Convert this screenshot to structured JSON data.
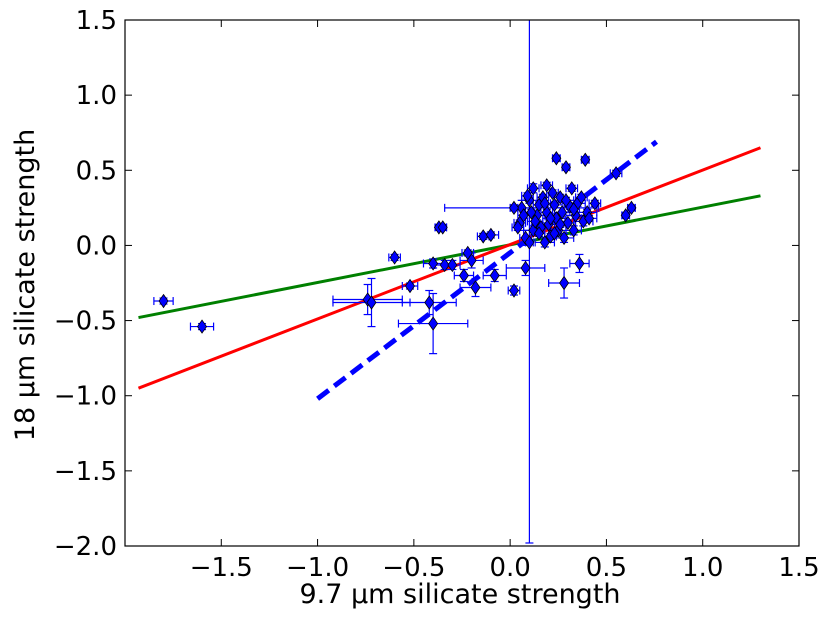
{
  "chart_data": {
    "type": "scatter",
    "title": "",
    "xlabel": "9.7 μm silicate strength",
    "ylabel": "18 μm silicate strength",
    "xlim": [
      -2.0,
      1.5
    ],
    "ylim": [
      -2.0,
      1.5
    ],
    "xticks": [
      -1.5,
      -1.0,
      -0.5,
      0.0,
      0.5,
      1.0,
      1.5
    ],
    "xtick_labels": [
      "−1.5",
      "−1.0",
      "−0.5",
      "0.0",
      "0.5",
      "1.0",
      "1.5"
    ],
    "yticks": [
      -2.0,
      -1.5,
      -1.0,
      -0.5,
      0.0,
      0.5,
      1.0,
      1.5
    ],
    "ytick_labels": [
      "−2.0",
      "−1.5",
      "−1.0",
      "−0.5",
      "0.0",
      "0.5",
      "1.0",
      "1.5"
    ],
    "grid": false,
    "lines": [
      {
        "name": "green-fit",
        "color": "#008000",
        "style": "solid",
        "x": [
          -1.93,
          1.3
        ],
        "y": [
          -0.48,
          0.33
        ]
      },
      {
        "name": "red-fit",
        "color": "#ff0000",
        "style": "solid",
        "x": [
          -1.93,
          1.3
        ],
        "y": [
          -0.95,
          0.65
        ]
      },
      {
        "name": "blue-fit",
        "color": "#0000ff",
        "style": "dashed",
        "x": [
          -1.0,
          0.76
        ],
        "y": [
          -1.02,
          0.69
        ]
      }
    ],
    "series": [
      {
        "name": "sources",
        "marker": "diamond",
        "color": "#0000ff",
        "points": [
          {
            "x": -1.8,
            "y": -0.37,
            "xerr": 0.05,
            "yerr": 0.02
          },
          {
            "x": -1.6,
            "y": -0.54,
            "xerr": 0.06,
            "yerr": 0.02
          },
          {
            "x": -0.74,
            "y": -0.36,
            "xerr": 0.18,
            "yerr": 0.1
          },
          {
            "x": -0.72,
            "y": -0.38,
            "xerr": 0.2,
            "yerr": 0.16
          },
          {
            "x": -0.6,
            "y": -0.08,
            "xerr": 0.03,
            "yerr": 0.02
          },
          {
            "x": -0.52,
            "y": -0.27,
            "xerr": 0.04,
            "yerr": 0.02
          },
          {
            "x": -0.42,
            "y": -0.38,
            "xerr": 0.14,
            "yerr": 0.08
          },
          {
            "x": -0.4,
            "y": -0.52,
            "xerr": 0.18,
            "yerr": 0.2
          },
          {
            "x": -0.4,
            "y": -0.12,
            "xerr": 0.05,
            "yerr": 0.03
          },
          {
            "x": -0.37,
            "y": 0.12,
            "xerr": 0.02,
            "yerr": 0.02
          },
          {
            "x": -0.35,
            "y": 0.12,
            "xerr": 0.02,
            "yerr": 0.02
          },
          {
            "x": -0.34,
            "y": -0.13,
            "xerr": 0.05,
            "yerr": 0.03
          },
          {
            "x": -0.3,
            "y": -0.13,
            "xerr": 0.04,
            "yerr": 0.03
          },
          {
            "x": -0.24,
            "y": -0.2,
            "xerr": 0.05,
            "yerr": 0.04
          },
          {
            "x": -0.22,
            "y": -0.05,
            "xerr": 0.03,
            "yerr": 0.02
          },
          {
            "x": -0.2,
            "y": -0.1,
            "xerr": 0.06,
            "yerr": 0.05
          },
          {
            "x": -0.18,
            "y": -0.28,
            "xerr": 0.08,
            "yerr": 0.06
          },
          {
            "x": -0.14,
            "y": 0.06,
            "xerr": 0.03,
            "yerr": 0.02
          },
          {
            "x": -0.1,
            "y": 0.07,
            "xerr": 0.04,
            "yerr": 0.02
          },
          {
            "x": -0.08,
            "y": -0.2,
            "xerr": 0.06,
            "yerr": 0.04
          },
          {
            "x": 0.02,
            "y": -0.3,
            "xerr": 0.03,
            "yerr": 0.03
          },
          {
            "x": 0.05,
            "y": 0.15,
            "xerr": 0.03,
            "yerr": 0.02
          },
          {
            "x": 0.06,
            "y": 0.25,
            "xerr": 0.4,
            "yerr": 0.05
          },
          {
            "x": 0.08,
            "y": 0.05,
            "xerr": 0.03,
            "yerr": 0.05
          },
          {
            "x": 0.08,
            "y": -0.15,
            "xerr": 0.1,
            "yerr": 0.05
          },
          {
            "x": 0.1,
            "y": 0.02,
            "xerr": 0.02,
            "yerr": 2.0
          },
          {
            "x": 0.1,
            "y": 0.3,
            "xerr": 0.04,
            "yerr": 0.02
          },
          {
            "x": 0.12,
            "y": 0.38,
            "xerr": 0.03,
            "yerr": 0.03
          },
          {
            "x": 0.12,
            "y": 0.1,
            "xerr": 0.05,
            "yerr": 0.03
          },
          {
            "x": 0.14,
            "y": 0.2,
            "xerr": 0.04,
            "yerr": 0.03
          },
          {
            "x": 0.15,
            "y": 0.27,
            "xerr": 0.03,
            "yerr": 0.02
          },
          {
            "x": 0.16,
            "y": 0.12,
            "xerr": 0.05,
            "yerr": 0.03
          },
          {
            "x": 0.17,
            "y": 0.32,
            "xerr": 0.03,
            "yerr": 0.02
          },
          {
            "x": 0.18,
            "y": 0.02,
            "xerr": 0.05,
            "yerr": 0.03
          },
          {
            "x": 0.19,
            "y": 0.22,
            "xerr": 0.03,
            "yerr": 0.02
          },
          {
            "x": 0.2,
            "y": 0.14,
            "xerr": 0.04,
            "yerr": 0.03
          },
          {
            "x": 0.21,
            "y": 0.06,
            "xerr": 0.03,
            "yerr": 0.02
          },
          {
            "x": 0.22,
            "y": 0.35,
            "xerr": 0.03,
            "yerr": 0.02
          },
          {
            "x": 0.23,
            "y": 0.27,
            "xerr": 0.04,
            "yerr": 0.02
          },
          {
            "x": 0.24,
            "y": 0.18,
            "xerr": 0.05,
            "yerr": 0.03
          },
          {
            "x": 0.24,
            "y": 0.58,
            "xerr": 0.02,
            "yerr": 0.02
          },
          {
            "x": 0.25,
            "y": 0.1,
            "xerr": 0.04,
            "yerr": 0.02
          },
          {
            "x": 0.26,
            "y": 0.32,
            "xerr": 0.03,
            "yerr": 0.02
          },
          {
            "x": 0.27,
            "y": 0.22,
            "xerr": 0.04,
            "yerr": 0.03
          },
          {
            "x": 0.28,
            "y": 0.05,
            "xerr": 0.05,
            "yerr": 0.03
          },
          {
            "x": 0.28,
            "y": -0.25,
            "xerr": 0.08,
            "yerr": 0.1
          },
          {
            "x": 0.29,
            "y": 0.52,
            "xerr": 0.02,
            "yerr": 0.02
          },
          {
            "x": 0.3,
            "y": 0.15,
            "xerr": 0.04,
            "yerr": 0.02
          },
          {
            "x": 0.31,
            "y": 0.26,
            "xerr": 0.03,
            "yerr": 0.02
          },
          {
            "x": 0.32,
            "y": 0.38,
            "xerr": 0.03,
            "yerr": 0.02
          },
          {
            "x": 0.33,
            "y": 0.1,
            "xerr": 0.04,
            "yerr": 0.03
          },
          {
            "x": 0.34,
            "y": 0.2,
            "xerr": 0.05,
            "yerr": 0.02
          },
          {
            "x": 0.35,
            "y": 0.28,
            "xerr": 0.04,
            "yerr": 0.02
          },
          {
            "x": 0.36,
            "y": -0.12,
            "xerr": 0.05,
            "yerr": 0.06
          },
          {
            "x": 0.38,
            "y": 0.16,
            "xerr": 0.05,
            "yerr": 0.03
          },
          {
            "x": 0.39,
            "y": 0.57,
            "xerr": 0.02,
            "yerr": 0.02
          },
          {
            "x": 0.4,
            "y": 0.22,
            "xerr": 0.05,
            "yerr": 0.02
          },
          {
            "x": 0.44,
            "y": 0.28,
            "xerr": 0.03,
            "yerr": 0.02
          },
          {
            "x": 0.55,
            "y": 0.48,
            "xerr": 0.03,
            "yerr": 0.02
          },
          {
            "x": 0.6,
            "y": 0.2,
            "xerr": 0.02,
            "yerr": 0.02
          },
          {
            "x": 0.63,
            "y": 0.25,
            "xerr": 0.02,
            "yerr": 0.02
          },
          {
            "x": 0.02,
            "y": 0.25,
            "xerr": 0.02,
            "yerr": 0.02
          },
          {
            "x": 0.04,
            "y": 0.12,
            "xerr": 0.03,
            "yerr": 0.02
          },
          {
            "x": 0.07,
            "y": 0.2,
            "xerr": 0.03,
            "yerr": 0.02
          },
          {
            "x": 0.09,
            "y": 0.33,
            "xerr": 0.03,
            "yerr": 0.02
          },
          {
            "x": 0.13,
            "y": 0.16,
            "xerr": 0.04,
            "yerr": 0.02
          },
          {
            "x": 0.18,
            "y": 0.28,
            "xerr": 0.03,
            "yerr": 0.02
          },
          {
            "x": 0.21,
            "y": 0.18,
            "xerr": 0.04,
            "yerr": 0.02
          },
          {
            "x": 0.26,
            "y": 0.14,
            "xerr": 0.03,
            "yerr": 0.02
          },
          {
            "x": 0.29,
            "y": 0.3,
            "xerr": 0.04,
            "yerr": 0.02
          },
          {
            "x": 0.33,
            "y": 0.24,
            "xerr": 0.03,
            "yerr": 0.02
          },
          {
            "x": 0.37,
            "y": 0.32,
            "xerr": 0.03,
            "yerr": 0.02
          },
          {
            "x": 0.41,
            "y": 0.18,
            "xerr": 0.04,
            "yerr": 0.02
          },
          {
            "x": 0.15,
            "y": 0.08,
            "xerr": 0.03,
            "yerr": 0.02
          },
          {
            "x": 0.23,
            "y": 0.08,
            "xerr": 0.03,
            "yerr": 0.02
          },
          {
            "x": 0.11,
            "y": 0.22,
            "xerr": 0.03,
            "yerr": 0.02
          },
          {
            "x": 0.19,
            "y": 0.4,
            "xerr": 0.03,
            "yerr": 0.02
          }
        ]
      }
    ]
  }
}
